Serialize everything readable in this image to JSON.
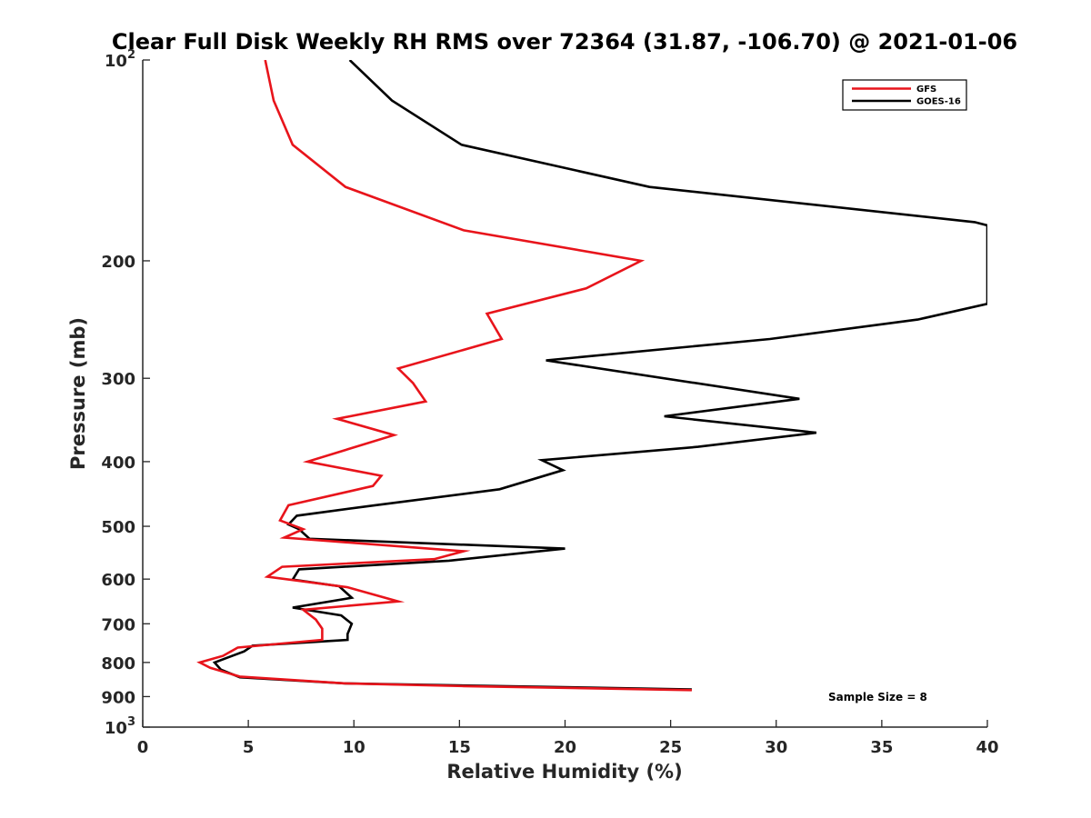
{
  "chart_data": {
    "type": "line",
    "title": "Clear Full Disk Weekly RH RMS over 72364 (31.87, -106.70) @ 2021-01-06",
    "xlabel": "Relative Humidity (%)",
    "ylabel": "Pressure (mb)",
    "xlim": [
      0,
      40
    ],
    "ylim": [
      100,
      1000
    ],
    "y_scale": "log",
    "y_reversed": true,
    "grid": false,
    "legend_position": "top-right",
    "annotation": "Sample Size = 8",
    "x_ticks": [
      "0",
      "5",
      "10",
      "15",
      "20",
      "25",
      "30",
      "35",
      "40"
    ],
    "y_ticks": [
      {
        "value": 100,
        "base": "10",
        "exp": "2"
      },
      {
        "value": 200,
        "label": "200"
      },
      {
        "value": 300,
        "label": "300"
      },
      {
        "value": 400,
        "label": "400"
      },
      {
        "value": 500,
        "label": "500"
      },
      {
        "value": 600,
        "label": "600"
      },
      {
        "value": 700,
        "label": "700"
      },
      {
        "value": 800,
        "label": "800"
      },
      {
        "value": 900,
        "label": "900"
      },
      {
        "value": 1000,
        "base": "10",
        "exp": "3"
      }
    ],
    "series": [
      {
        "name": "GFS",
        "color": "#e8141b",
        "points": [
          [
            5.8,
            100
          ],
          [
            6.2,
            115
          ],
          [
            7.1,
            134
          ],
          [
            9.6,
            155
          ],
          [
            15.2,
            180
          ],
          [
            23.6,
            200
          ],
          [
            21.0,
            220
          ],
          [
            16.3,
            240
          ],
          [
            17.0,
            262
          ],
          [
            12.1,
            290
          ],
          [
            12.8,
            305
          ],
          [
            13.4,
            325
          ],
          [
            9.2,
            345
          ],
          [
            11.9,
            365
          ],
          [
            7.8,
            400
          ],
          [
            11.3,
            420
          ],
          [
            10.9,
            435
          ],
          [
            6.9,
            465
          ],
          [
            6.5,
            490
          ],
          [
            7.6,
            505
          ],
          [
            6.7,
            520
          ],
          [
            15.2,
            545
          ],
          [
            13.8,
            560
          ],
          [
            6.6,
            575
          ],
          [
            5.9,
            595
          ],
          [
            9.7,
            617
          ],
          [
            12.1,
            648
          ],
          [
            7.6,
            667
          ],
          [
            8.2,
            690
          ],
          [
            8.5,
            712
          ],
          [
            8.5,
            740
          ],
          [
            4.5,
            760
          ],
          [
            3.8,
            782
          ],
          [
            2.7,
            800
          ],
          [
            3.2,
            815
          ],
          [
            4.6,
            840
          ],
          [
            9.6,
            860
          ],
          [
            15.2,
            868
          ],
          [
            26.0,
            880
          ]
        ]
      },
      {
        "name": "GOES-16",
        "color": "#000000",
        "points": [
          [
            9.8,
            100
          ],
          [
            11.8,
            115
          ],
          [
            15.1,
            134
          ],
          [
            24.0,
            155
          ],
          [
            39.4,
            175
          ],
          [
            40.0,
            177
          ],
          [
            40.0,
            232
          ],
          [
            36.7,
            245
          ],
          [
            29.7,
            262
          ],
          [
            19.1,
            282
          ],
          [
            31.1,
            322
          ],
          [
            24.7,
            342
          ],
          [
            31.9,
            362
          ],
          [
            26.3,
            380
          ],
          [
            18.9,
            398
          ],
          [
            19.9,
            412
          ],
          [
            16.9,
            440
          ],
          [
            11.0,
            465
          ],
          [
            7.3,
            482
          ],
          [
            6.9,
            497
          ],
          [
            7.4,
            505
          ],
          [
            7.9,
            522
          ],
          [
            20.0,
            540
          ],
          [
            14.5,
            563
          ],
          [
            7.4,
            580
          ],
          [
            7.1,
            601
          ],
          [
            9.3,
            615
          ],
          [
            9.9,
            640
          ],
          [
            7.1,
            662
          ],
          [
            9.4,
            680
          ],
          [
            9.9,
            700
          ],
          [
            9.7,
            725
          ],
          [
            9.7,
            740
          ],
          [
            5.2,
            755
          ],
          [
            4.8,
            770
          ],
          [
            3.4,
            800
          ],
          [
            3.7,
            820
          ],
          [
            4.6,
            842
          ],
          [
            9.6,
            860
          ],
          [
            26.0,
            878
          ]
        ]
      }
    ]
  }
}
